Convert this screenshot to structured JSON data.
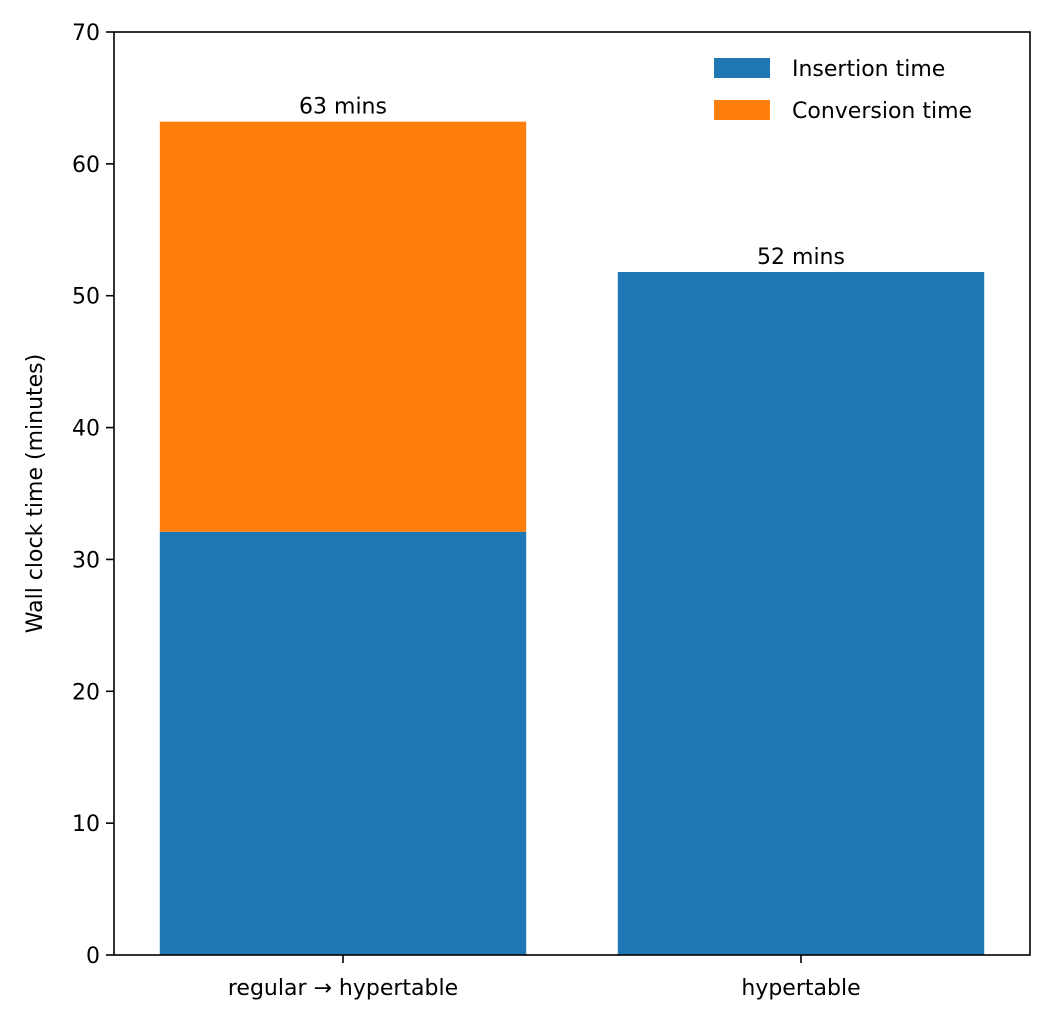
{
  "chart_data": {
    "type": "bar",
    "stacked": true,
    "categories": [
      "regular → hypertable",
      "hypertable"
    ],
    "series": [
      {
        "name": "Insertion time",
        "color": "#1f77b4",
        "values": [
          32.1,
          51.8
        ]
      },
      {
        "name": "Conversion time",
        "color": "#ff7f0e",
        "values": [
          31.1,
          0
        ]
      }
    ],
    "totals_labels": [
      "63 mins",
      "52 mins"
    ],
    "ylabel": "Wall clock time (minutes)",
    "xlabel": "",
    "ylim": [
      0,
      70
    ],
    "yticks": [
      0,
      10,
      20,
      30,
      40,
      50,
      60,
      70
    ],
    "grid": false,
    "legend_position": "top-right"
  }
}
